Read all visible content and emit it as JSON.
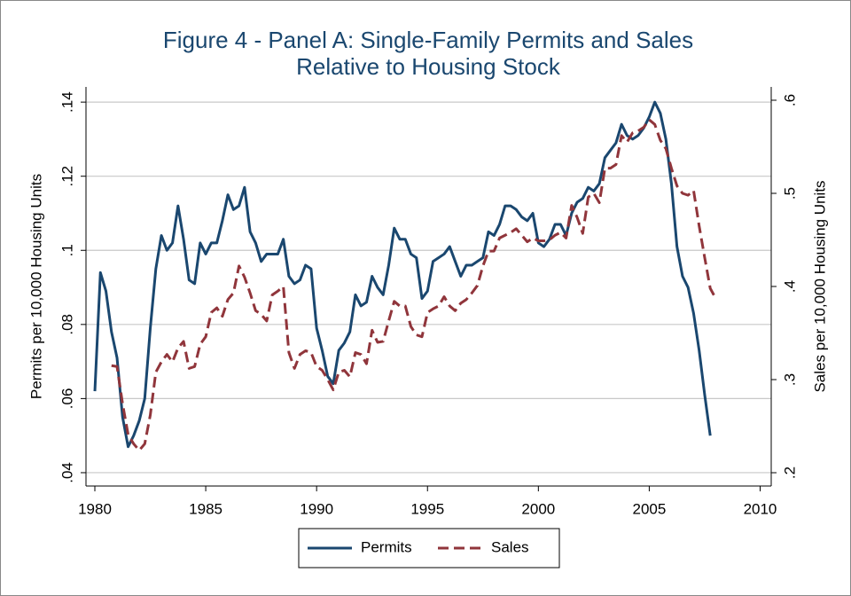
{
  "chart_data": {
    "type": "line",
    "title": [
      "Figure 4 - Panel A: Single-Family Permits and Sales",
      "Relative to Housing Stock"
    ],
    "y_label": "Permits per 10,000 Housing Units",
    "y2_label": "Sales per 10,000 Housing Units",
    "xlim": [
      1979.6,
      2010.5
    ],
    "xticks": [
      1980,
      1985,
      1990,
      1995,
      2000,
      2005,
      2010
    ],
    "ylim": [
      0.0364,
      0.1441
    ],
    "yticks": [
      {
        "value": 0.04,
        "label": ".04"
      },
      {
        "value": 0.06,
        "label": ".06"
      },
      {
        "value": 0.08,
        "label": ".08"
      },
      {
        "value": 0.1,
        "label": ".1"
      },
      {
        "value": 0.12,
        "label": ".12"
      },
      {
        "value": 0.14,
        "label": ".14"
      }
    ],
    "y2lim": [
      0.1857,
      0.6143
    ],
    "y2ticks": [
      {
        "value": 0.2,
        "label": ".2"
      },
      {
        "value": 0.3,
        "label": ".3"
      },
      {
        "value": 0.4,
        "label": ".4"
      },
      {
        "value": 0.5,
        "label": ".5"
      },
      {
        "value": 0.6,
        "label": ".6"
      }
    ],
    "grid": true,
    "legend_position": "bottom",
    "series": [
      {
        "name": "Permits",
        "color": "#1a476f",
        "dash": false,
        "axis": "y",
        "x": [
          1980,
          1980.25,
          1980.5,
          1980.75,
          1981,
          1981.25,
          1981.5,
          1981.75,
          1982,
          1982.25,
          1982.5,
          1982.75,
          1983,
          1983.25,
          1983.5,
          1983.75,
          1984,
          1984.25,
          1984.5,
          1984.75,
          1985,
          1985.25,
          1985.5,
          1985.75,
          1986,
          1986.25,
          1986.5,
          1986.75,
          1987,
          1987.25,
          1987.5,
          1987.75,
          1988,
          1988.25,
          1988.5,
          1988.75,
          1989,
          1989.25,
          1989.5,
          1989.75,
          1990,
          1990.25,
          1990.5,
          1990.75,
          1991,
          1991.25,
          1991.5,
          1991.75,
          1992,
          1992.25,
          1992.5,
          1992.75,
          1993,
          1993.25,
          1993.5,
          1993.75,
          1994,
          1994.25,
          1994.5,
          1994.75,
          1995,
          1995.25,
          1995.5,
          1995.75,
          1996,
          1996.25,
          1996.5,
          1996.75,
          1997,
          1997.25,
          1997.5,
          1997.75,
          1998,
          1998.25,
          1998.5,
          1998.75,
          1999,
          1999.25,
          1999.5,
          1999.75,
          2000,
          2000.25,
          2000.5,
          2000.75,
          2001,
          2001.25,
          2001.5,
          2001.75,
          2002,
          2002.25,
          2002.5,
          2002.75,
          2003,
          2003.25,
          2003.5,
          2003.75,
          2004,
          2004.25,
          2004.5,
          2004.75,
          2005,
          2005.25,
          2005.5,
          2005.75,
          2006,
          2006.25,
          2006.5,
          2006.75,
          2007,
          2007.25,
          2007.5,
          2007.75
        ],
        "values": [
          0.062,
          0.094,
          0.089,
          0.078,
          0.071,
          0.055,
          0.047,
          0.05,
          0.054,
          0.06,
          0.079,
          0.095,
          0.104,
          0.1,
          0.102,
          0.112,
          0.103,
          0.092,
          0.091,
          0.102,
          0.099,
          0.102,
          0.102,
          0.108,
          0.115,
          0.111,
          0.112,
          0.117,
          0.105,
          0.102,
          0.097,
          0.099,
          0.099,
          0.099,
          0.103,
          0.093,
          0.091,
          0.092,
          0.096,
          0.095,
          0.079,
          0.073,
          0.066,
          0.064,
          0.073,
          0.075,
          0.078,
          0.088,
          0.085,
          0.086,
          0.093,
          0.09,
          0.088,
          0.096,
          0.106,
          0.103,
          0.103,
          0.099,
          0.098,
          0.087,
          0.089,
          0.097,
          0.098,
          0.099,
          0.101,
          0.097,
          0.093,
          0.096,
          0.096,
          0.097,
          0.098,
          0.105,
          0.104,
          0.107,
          0.112,
          0.112,
          0.111,
          0.109,
          0.108,
          0.11,
          0.102,
          0.101,
          0.103,
          0.107,
          0.107,
          0.104,
          0.11,
          0.113,
          0.114,
          0.117,
          0.116,
          0.118,
          0.125,
          0.127,
          0.129,
          0.134,
          0.131,
          0.13,
          0.131,
          0.133,
          0.136,
          0.14,
          0.137,
          0.13,
          0.118,
          0.101,
          0.093,
          0.09,
          0.083,
          0.073,
          0.061,
          0.05
        ]
      },
      {
        "name": "Sales",
        "color": "#90353b",
        "dash": true,
        "axis": "y2",
        "x": [
          1980.75,
          1981,
          1981.25,
          1981.5,
          1981.75,
          1982,
          1982.25,
          1982.5,
          1982.75,
          1983,
          1983.25,
          1983.5,
          1983.75,
          1984,
          1984.25,
          1984.5,
          1984.75,
          1985,
          1985.25,
          1985.5,
          1985.75,
          1986,
          1986.25,
          1986.5,
          1986.75,
          1987,
          1987.25,
          1987.5,
          1987.75,
          1988,
          1988.25,
          1988.5,
          1988.75,
          1989,
          1989.25,
          1989.5,
          1989.75,
          1990,
          1990.25,
          1990.5,
          1990.75,
          1991,
          1991.25,
          1991.5,
          1991.75,
          1992,
          1992.25,
          1992.5,
          1992.75,
          1993,
          1993.25,
          1993.5,
          1993.75,
          1994,
          1994.25,
          1994.5,
          1994.75,
          1995,
          1995.25,
          1995.5,
          1995.75,
          1996,
          1996.25,
          1996.5,
          1996.75,
          1997,
          1997.25,
          1997.5,
          1997.75,
          1998,
          1998.25,
          1998.5,
          1998.75,
          1999,
          1999.25,
          1999.5,
          1999.75,
          2000,
          2000.25,
          2000.5,
          2000.75,
          2001,
          2001.25,
          2001.5,
          2001.75,
          2002,
          2002.25,
          2002.5,
          2002.75,
          2003,
          2003.25,
          2003.5,
          2003.75,
          2004,
          2004.25,
          2004.5,
          2004.75,
          2005,
          2005.25,
          2005.5,
          2005.75,
          2006,
          2006.25,
          2006.5,
          2006.75,
          2007,
          2007.25,
          2007.5,
          2007.75,
          2008
        ],
        "values": [
          0.315,
          0.314,
          0.274,
          0.241,
          0.231,
          0.224,
          0.231,
          0.262,
          0.308,
          0.319,
          0.327,
          0.319,
          0.334,
          0.341,
          0.312,
          0.314,
          0.338,
          0.346,
          0.372,
          0.377,
          0.368,
          0.386,
          0.393,
          0.422,
          0.41,
          0.393,
          0.374,
          0.37,
          0.363,
          0.391,
          0.395,
          0.4,
          0.329,
          0.312,
          0.327,
          0.331,
          0.329,
          0.314,
          0.31,
          0.3,
          0.289,
          0.308,
          0.31,
          0.303,
          0.329,
          0.327,
          0.317,
          0.353,
          0.34,
          0.341,
          0.363,
          0.384,
          0.379,
          0.379,
          0.357,
          0.348,
          0.346,
          0.372,
          0.376,
          0.379,
          0.389,
          0.379,
          0.374,
          0.382,
          0.386,
          0.393,
          0.401,
          0.422,
          0.438,
          0.438,
          0.452,
          0.455,
          0.458,
          0.462,
          0.455,
          0.448,
          0.452,
          0.449,
          0.449,
          0.45,
          0.455,
          0.458,
          0.452,
          0.487,
          0.474,
          0.457,
          0.496,
          0.5,
          0.49,
          0.527,
          0.527,
          0.531,
          0.562,
          0.555,
          0.565,
          0.567,
          0.571,
          0.579,
          0.574,
          0.557,
          0.548,
          0.527,
          0.508,
          0.5,
          0.498,
          0.503,
          0.465,
          0.431,
          0.398,
          0.387
        ]
      }
    ]
  }
}
